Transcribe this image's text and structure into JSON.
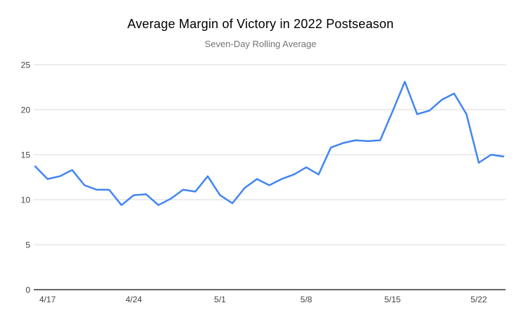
{
  "chart": {
    "title": "Average Margin of Victory in 2022 Postseason",
    "subtitle": "Seven-Day Rolling Average"
  },
  "chart_data": {
    "type": "line",
    "title": "Average Margin of Victory in 2022 Postseason",
    "subtitle": "Seven-Day Rolling Average",
    "x": [
      "4/16",
      "4/17",
      "4/18",
      "4/19",
      "4/20",
      "4/21",
      "4/22",
      "4/23",
      "4/24",
      "4/25",
      "4/26",
      "4/27",
      "4/28",
      "4/29",
      "4/30",
      "5/1",
      "5/2",
      "5/3",
      "5/4",
      "5/5",
      "5/6",
      "5/7",
      "5/8",
      "5/9",
      "5/10",
      "5/11",
      "5/12",
      "5/13",
      "5/14",
      "5/15",
      "5/16",
      "5/17",
      "5/18",
      "5/19",
      "5/20",
      "5/21",
      "5/22",
      "5/23",
      "5/24"
    ],
    "values": [
      13.7,
      12.3,
      12.6,
      13.3,
      11.6,
      11.1,
      11.1,
      9.4,
      10.5,
      10.6,
      9.4,
      10.1,
      11.1,
      10.9,
      12.6,
      10.5,
      9.6,
      11.3,
      12.3,
      11.6,
      12.3,
      12.8,
      13.6,
      12.8,
      15.8,
      16.3,
      16.6,
      16.5,
      16.6,
      19.8,
      23.1,
      19.5,
      19.9,
      21.1,
      21.8,
      19.5,
      14.1,
      15.0,
      14.8
    ],
    "xlabel": "",
    "ylabel": "",
    "ylim": [
      0,
      25
    ],
    "yticks": [
      0,
      5,
      10,
      15,
      20,
      25
    ],
    "xtick_labels": [
      "4/17",
      "4/24",
      "5/1",
      "5/8",
      "5/15",
      "5/22"
    ],
    "xtick_indices": [
      1,
      8,
      15,
      22,
      29,
      36
    ],
    "grid": true,
    "legend_position": "none",
    "colors": {
      "series": "#4285f4",
      "gridline": "#d9d9d9",
      "axis_line": "#333333",
      "tick_label": "#444444",
      "title": "#000000",
      "subtitle": "#757575",
      "background": "#ffffff"
    }
  }
}
